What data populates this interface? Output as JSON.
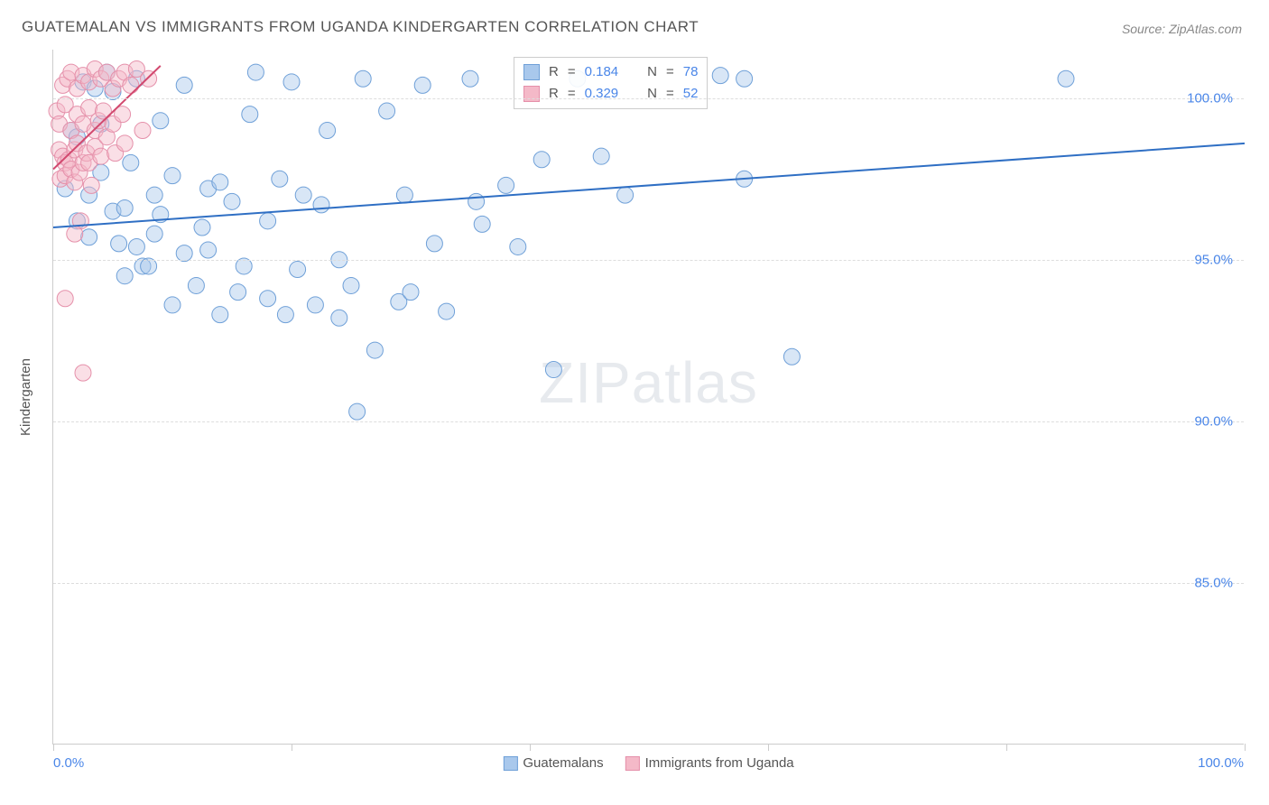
{
  "title": "GUATEMALAN VS IMMIGRANTS FROM UGANDA KINDERGARTEN CORRELATION CHART",
  "source": "Source: ZipAtlas.com",
  "watermark": {
    "part1": "ZIP",
    "part2": "atlas"
  },
  "y_axis_title": "Kindergarten",
  "chart": {
    "type": "scatter",
    "xlim": [
      0,
      100
    ],
    "ylim": [
      80,
      101.5
    ],
    "y_ticks": [
      85.0,
      90.0,
      95.0,
      100.0
    ],
    "y_tick_labels": [
      "85.0%",
      "90.0%",
      "95.0%",
      "100.0%"
    ],
    "x_ticks": [
      0,
      20,
      40,
      60,
      80,
      100
    ],
    "x_label_min": "0.0%",
    "x_label_max": "100.0%",
    "background_color": "#ffffff",
    "grid_color": "#dddddd",
    "axis_color": "#cccccc",
    "tick_label_color": "#4a86e8",
    "marker_radius": 9,
    "marker_opacity": 0.45,
    "series": [
      {
        "name": "Guatemalans",
        "fill_color": "#a9c8ec",
        "stroke_color": "#6fa0d8",
        "r_value": "0.184",
        "n_value": "78",
        "trend": {
          "x1": 0,
          "y1": 96.0,
          "x2": 100,
          "y2": 98.6,
          "color": "#2f6fc4",
          "width": 2
        },
        "points": [
          [
            1,
            97.2
          ],
          [
            1.5,
            99.0
          ],
          [
            2,
            96.2
          ],
          [
            2,
            98.8
          ],
          [
            2.5,
            100.5
          ],
          [
            3,
            97.0
          ],
          [
            3,
            95.7
          ],
          [
            3.5,
            100.3
          ],
          [
            4,
            99.2
          ],
          [
            4,
            97.7
          ],
          [
            4.5,
            100.8
          ],
          [
            5,
            96.5
          ],
          [
            5,
            100.2
          ],
          [
            5.5,
            95.5
          ],
          [
            6,
            94.5
          ],
          [
            6,
            96.6
          ],
          [
            6.5,
            98.0
          ],
          [
            7,
            95.4
          ],
          [
            7,
            100.6
          ],
          [
            7.5,
            94.8
          ],
          [
            8,
            94.8
          ],
          [
            8.5,
            97.0
          ],
          [
            8.5,
            95.8
          ],
          [
            9,
            96.4
          ],
          [
            9,
            99.3
          ],
          [
            10,
            93.6
          ],
          [
            10,
            97.6
          ],
          [
            11,
            95.2
          ],
          [
            11,
            100.4
          ],
          [
            12,
            94.2
          ],
          [
            12.5,
            96.0
          ],
          [
            13,
            97.2
          ],
          [
            13,
            95.3
          ],
          [
            14,
            93.3
          ],
          [
            14,
            97.4
          ],
          [
            15,
            96.8
          ],
          [
            15.5,
            94.0
          ],
          [
            16,
            94.8
          ],
          [
            16.5,
            99.5
          ],
          [
            17,
            100.8
          ],
          [
            18,
            93.8
          ],
          [
            18,
            96.2
          ],
          [
            19,
            97.5
          ],
          [
            19.5,
            93.3
          ],
          [
            20,
            100.5
          ],
          [
            20.5,
            94.7
          ],
          [
            21,
            97.0
          ],
          [
            22,
            93.6
          ],
          [
            22.5,
            96.7
          ],
          [
            23,
            99.0
          ],
          [
            24,
            95.0
          ],
          [
            24,
            93.2
          ],
          [
            25,
            94.2
          ],
          [
            25.5,
            90.3
          ],
          [
            26,
            100.6
          ],
          [
            27,
            92.2
          ],
          [
            28,
            99.6
          ],
          [
            29,
            93.7
          ],
          [
            29.5,
            97.0
          ],
          [
            30,
            94.0
          ],
          [
            31,
            100.4
          ],
          [
            32,
            95.5
          ],
          [
            33,
            93.4
          ],
          [
            35,
            100.6
          ],
          [
            35.5,
            96.8
          ],
          [
            36,
            96.1
          ],
          [
            38,
            97.3
          ],
          [
            39,
            95.4
          ],
          [
            41,
            98.1
          ],
          [
            42,
            91.6
          ],
          [
            44,
            100.6
          ],
          [
            46,
            98.2
          ],
          [
            48,
            97.0
          ],
          [
            56,
            100.7
          ],
          [
            58,
            100.6
          ],
          [
            58,
            97.5
          ],
          [
            62,
            92.0
          ],
          [
            85,
            100.6
          ]
        ]
      },
      {
        "name": "Immigrants from Uganda",
        "fill_color": "#f4b9c8",
        "stroke_color": "#e590aa",
        "r_value": "0.329",
        "n_value": "52",
        "trend": {
          "x1": 0,
          "y1": 97.8,
          "x2": 9,
          "y2": 101.0,
          "color": "#d2496f",
          "width": 2
        },
        "points": [
          [
            0.3,
            99.6
          ],
          [
            0.5,
            98.4
          ],
          [
            0.5,
            99.2
          ],
          [
            0.6,
            97.5
          ],
          [
            0.8,
            98.2
          ],
          [
            0.8,
            100.4
          ],
          [
            1,
            98.0
          ],
          [
            1,
            97.6
          ],
          [
            1,
            99.8
          ],
          [
            1.2,
            100.6
          ],
          [
            1.3,
            98.1
          ],
          [
            1.5,
            97.8
          ],
          [
            1.5,
            99.0
          ],
          [
            1.5,
            100.8
          ],
          [
            1.8,
            98.4
          ],
          [
            1.8,
            97.4
          ],
          [
            2,
            98.6
          ],
          [
            2,
            99.5
          ],
          [
            2,
            100.3
          ],
          [
            2.2,
            97.7
          ],
          [
            2.3,
            96.2
          ],
          [
            2.5,
            98.0
          ],
          [
            2.5,
            99.2
          ],
          [
            2.5,
            100.7
          ],
          [
            2.8,
            98.3
          ],
          [
            3,
            98.0
          ],
          [
            3,
            99.7
          ],
          [
            3,
            100.5
          ],
          [
            3.2,
            97.3
          ],
          [
            3.5,
            98.5
          ],
          [
            3.5,
            99.0
          ],
          [
            3.5,
            100.9
          ],
          [
            3.8,
            99.3
          ],
          [
            4,
            98.2
          ],
          [
            4,
            100.6
          ],
          [
            4.2,
            99.6
          ],
          [
            4.5,
            98.8
          ],
          [
            4.5,
            100.8
          ],
          [
            5,
            99.2
          ],
          [
            5,
            100.3
          ],
          [
            5.2,
            98.3
          ],
          [
            5.5,
            100.6
          ],
          [
            5.8,
            99.5
          ],
          [
            6,
            100.8
          ],
          [
            6,
            98.6
          ],
          [
            6.5,
            100.4
          ],
          [
            7,
            100.9
          ],
          [
            7.5,
            99.0
          ],
          [
            8,
            100.6
          ],
          [
            1,
            93.8
          ],
          [
            1.8,
            95.8
          ],
          [
            2.5,
            91.5
          ]
        ]
      }
    ],
    "bottom_legend": [
      {
        "label": "Guatemalans",
        "fill": "#a9c8ec",
        "stroke": "#6fa0d8"
      },
      {
        "label": "Immigrants from Uganda",
        "fill": "#f4b9c8",
        "stroke": "#e590aa"
      }
    ],
    "stats_labels": {
      "r": "R",
      "eq": "=",
      "n": "N"
    }
  }
}
